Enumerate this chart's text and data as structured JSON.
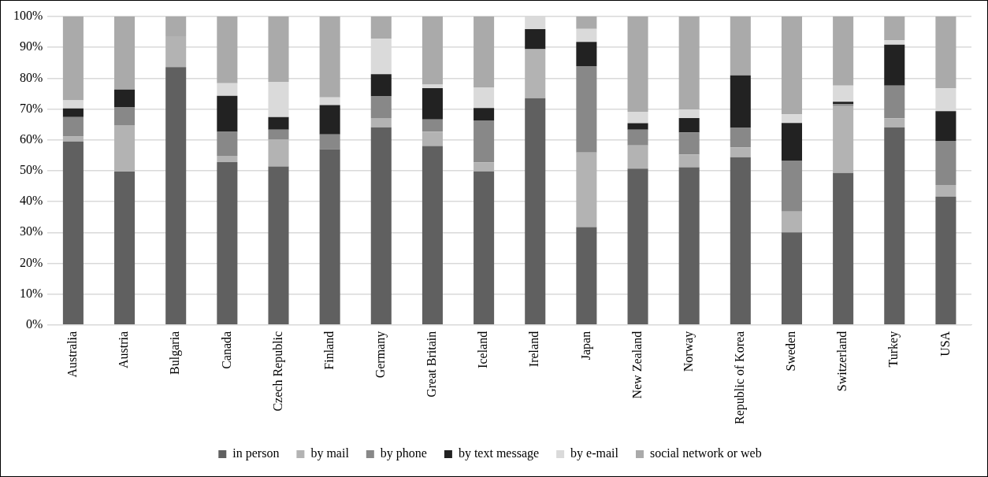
{
  "chart_data": {
    "type": "bar",
    "stacked": true,
    "categories": [
      "Australia",
      "Austria",
      "Bulgaria",
      "Canada",
      "Czech Republic",
      "Finland",
      "Germany",
      "Great Britain",
      "Iceland",
      "Ireland",
      "Japan",
      "New Zealand",
      "Norway",
      "Republic of Korea",
      "Sweden",
      "Switzerland",
      "Turkey",
      "USA"
    ],
    "series": [
      {
        "name": "in person",
        "color": "#606060",
        "values": [
          59.5,
          49.7,
          83.6,
          52.8,
          51.4,
          57.0,
          64.1,
          58.0,
          49.8,
          73.5,
          31.7,
          50.7,
          51.1,
          54.4,
          30.0,
          49.3,
          64.1,
          41.6
        ]
      },
      {
        "name": "by mail",
        "color": "#b3b3b3",
        "values": [
          1.6,
          15.1,
          10.0,
          2.0,
          8.8,
          0,
          3.0,
          4.7,
          2.9,
          15.9,
          24.2,
          7.5,
          4.2,
          3.2,
          6.8,
          21.7,
          2.9,
          3.8
        ]
      },
      {
        "name": "by phone",
        "color": "#888888",
        "values": [
          6.3,
          5.7,
          0,
          7.8,
          3.1,
          4.8,
          7.0,
          3.9,
          13.6,
          0,
          28.0,
          5.1,
          7.1,
          6.3,
          16.5,
          0.6,
          10.6,
          14.3
        ]
      },
      {
        "name": "by text message",
        "color": "#222222",
        "values": [
          2.8,
          5.8,
          0,
          11.7,
          4.1,
          9.5,
          7.2,
          10.2,
          4.0,
          6.5,
          7.9,
          2.1,
          4.7,
          17.0,
          12.2,
          0.8,
          13.3,
          9.6
        ]
      },
      {
        "name": "by e-mail",
        "color": "#dadada",
        "values": [
          2.6,
          0,
          0,
          4.1,
          11.4,
          2.5,
          11.5,
          1.1,
          6.7,
          4.1,
          4.2,
          3.7,
          2.8,
          0,
          2.8,
          5.2,
          1.4,
          7.4
        ]
      },
      {
        "name": "social network or web",
        "color": "#aaaaaa",
        "values": [
          27.2,
          23.7,
          6.4,
          21.6,
          21.2,
          26.2,
          7.2,
          22.1,
          23.0,
          0,
          4.0,
          30.9,
          30.1,
          19.1,
          31.7,
          22.4,
          7.7,
          23.3
        ]
      }
    ],
    "ylim": [
      0,
      100
    ],
    "yticks": [
      {
        "value": 0,
        "label": "0%"
      },
      {
        "value": 10,
        "label": "10%"
      },
      {
        "value": 20,
        "label": "20%"
      },
      {
        "value": 30,
        "label": "30%"
      },
      {
        "value": 40,
        "label": "40%"
      },
      {
        "value": 50,
        "label": "50%"
      },
      {
        "value": 60,
        "label": "60%"
      },
      {
        "value": 70,
        "label": "70%"
      },
      {
        "value": 80,
        "label": "80%"
      },
      {
        "value": 90,
        "label": "90%"
      },
      {
        "value": 100,
        "label": "100%"
      }
    ],
    "grid": "y",
    "legend": "bottom"
  }
}
